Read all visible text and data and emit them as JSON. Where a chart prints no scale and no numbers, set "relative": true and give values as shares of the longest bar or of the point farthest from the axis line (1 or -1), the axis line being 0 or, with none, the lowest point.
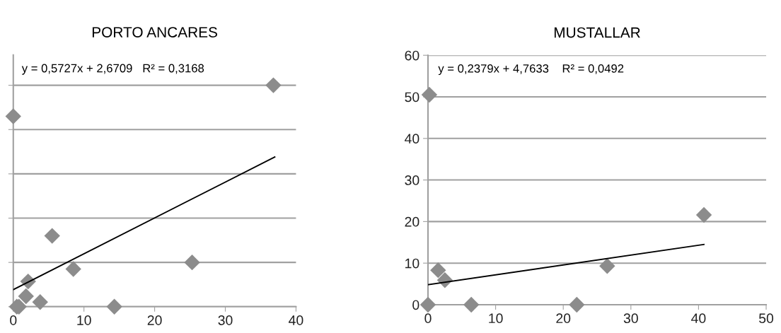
{
  "chart_data": [
    {
      "type": "scatter",
      "title": "PORTO ANCARES",
      "relative": true,
      "xlim": [
        0,
        40
      ],
      "xticks": [
        0,
        10,
        20,
        30,
        40
      ],
      "tick_labels": "x",
      "grid": "y",
      "marker": "diamond",
      "annotations": [
        "y = 0,5727x + 2,6709   R² = 0,3168"
      ],
      "series": [
        {
          "color": "#8c8c8c",
          "x": [
            0.5,
            0.8,
            1.8,
            2.1,
            3.8,
            5.5,
            8.5,
            14.3,
            25.3,
            0,
            36.8
          ],
          "values": [
            0,
            0,
            0.047,
            0.114,
            0.021,
            0.32,
            0.17,
            0,
            0.2,
            0.86,
            1
          ]
        },
        {
          "type": "line",
          "color": "#000000",
          "x": [
            0,
            37
          ],
          "values": [
            0.077,
            0.676
          ],
          "marker": "none"
        }
      ]
    },
    {
      "type": "scatter",
      "title": "MUSTALLAR",
      "xlim": [
        0,
        50
      ],
      "xticks": [
        0,
        10,
        20,
        30,
        40,
        50
      ],
      "ylim": [
        0,
        60
      ],
      "yticks": [
        0,
        10,
        20,
        30,
        40,
        50,
        60
      ],
      "grid": "y",
      "marker": "diamond",
      "annotations": [
        "y = 0,2379x + 4,7633    R² = 0,0492"
      ],
      "series": [
        {
          "color": "#8c8c8c",
          "x": [
            0.2,
            1.5,
            2.5,
            26.5,
            40.8,
            6.4,
            22,
            0
          ],
          "values": [
            50.5,
            8.3,
            5.9,
            9.3,
            21.6,
            0,
            0,
            0
          ]
        },
        {
          "type": "line",
          "color": "#000000",
          "x": [
            0,
            40.8
          ],
          "values": [
            4.8,
            14.5
          ],
          "marker": "none"
        }
      ]
    }
  ]
}
